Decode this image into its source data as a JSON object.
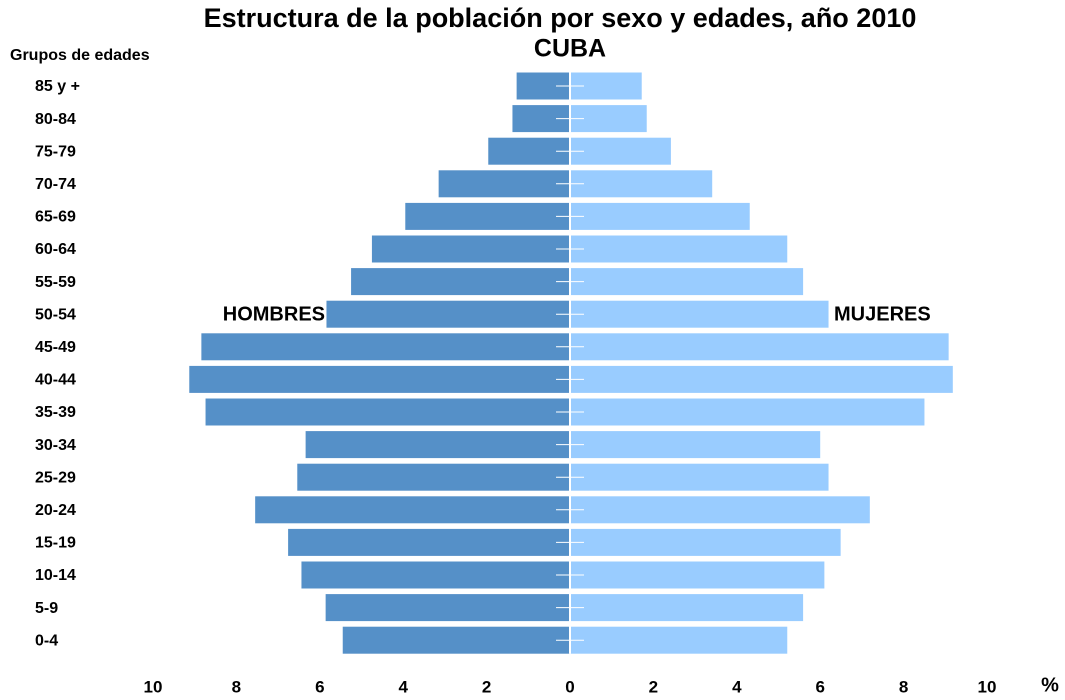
{
  "chart_data": {
    "type": "pyramid",
    "title": "Estructura de la población por sexo y edades, año 2010",
    "subtitle": "CUBA",
    "y_label": "Grupos de edades",
    "x_label": "%",
    "categories": [
      "85 y +",
      "80-84",
      "75-79",
      "70-74",
      "65-69",
      "60-64",
      "55-59",
      "50-54",
      "45-49",
      "40-44",
      "35-39",
      "30-34",
      "25-29",
      "20-24",
      "15-19",
      "10-14",
      "5-9",
      "0-4"
    ],
    "series": [
      {
        "name": "HOMBRES",
        "color": "#5590c8",
        "side": "left",
        "values": [
          1.28,
          1.38,
          1.96,
          3.15,
          3.95,
          4.75,
          5.25,
          5.84,
          8.84,
          9.13,
          8.74,
          6.34,
          6.54,
          7.55,
          6.76,
          6.44,
          5.86,
          5.45
        ]
      },
      {
        "name": "MUJERES",
        "color": "#99ccff",
        "side": "right",
        "values": [
          1.72,
          1.84,
          2.42,
          3.41,
          4.31,
          5.21,
          5.59,
          6.2,
          9.08,
          9.18,
          8.5,
          6.0,
          6.2,
          7.19,
          6.49,
          6.1,
          5.59,
          5.21
        ]
      }
    ],
    "xlim": [
      -10,
      10
    ],
    "xticks": [
      {
        "value": -10,
        "label": "10"
      },
      {
        "value": -8,
        "label": "8"
      },
      {
        "value": -6,
        "label": "6"
      },
      {
        "value": -4,
        "label": "4"
      },
      {
        "value": -2,
        "label": "2"
      },
      0,
      2,
      4,
      6,
      8,
      10
    ]
  }
}
